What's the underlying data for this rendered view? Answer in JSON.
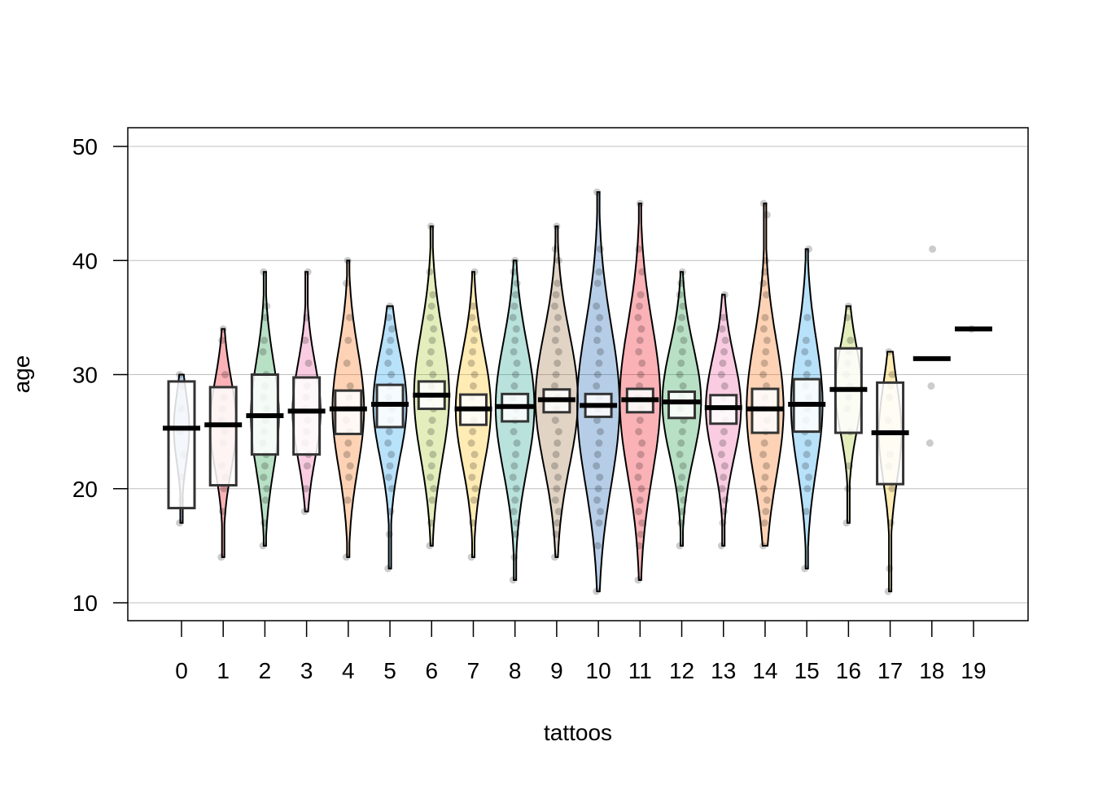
{
  "chart_data": {
    "type": "pirateplot",
    "title": "",
    "xlabel": "tattoos",
    "ylabel": "age",
    "ylim": [
      10,
      50
    ],
    "yticks": [
      "10",
      "20",
      "30",
      "40",
      "50"
    ],
    "grid": true,
    "categories": [
      "0",
      "1",
      "2",
      "3",
      "4",
      "5",
      "6",
      "7",
      "8",
      "9",
      "10",
      "11",
      "12",
      "13",
      "14",
      "15",
      "16",
      "17",
      "18",
      "19"
    ],
    "colors": [
      "#0C5BB0",
      "#EE0011",
      "#15983D",
      "#EC579A",
      "#FA6B09",
      "#149BED",
      "#A1C720",
      "#FEC10B",
      "#16A08C",
      "#9A703E",
      "#0C5BB0",
      "#EE0011",
      "#15983D",
      "#EC579A",
      "#FA6B09",
      "#149BED",
      "#A1C720",
      "#FEC10B",
      "#16A08C",
      "#9A703E"
    ],
    "means": [
      25.3,
      25.6,
      26.4,
      26.8,
      27.0,
      27.4,
      28.2,
      27.0,
      27.2,
      27.8,
      27.3,
      27.8,
      27.6,
      27.1,
      27.0,
      27.4,
      28.7,
      24.9,
      31.4,
      34.0
    ],
    "box_low": [
      18.3,
      20.3,
      23.0,
      23.0,
      24.8,
      25.4,
      27.0,
      25.6,
      25.9,
      26.7,
      26.3,
      26.7,
      26.2,
      25.7,
      24.9,
      25.0,
      24.9,
      20.4,
      null,
      null
    ],
    "box_high": [
      29.4,
      28.9,
      30.0,
      29.75,
      28.6,
      29.1,
      29.4,
      28.25,
      28.3,
      28.7,
      28.3,
      28.75,
      28.5,
      28.2,
      28.75,
      29.6,
      32.3,
      29.3,
      null,
      null
    ],
    "min": [
      17,
      14,
      15,
      18,
      14,
      13,
      15,
      14,
      12,
      14,
      11,
      12,
      15,
      15,
      15,
      13,
      17,
      11,
      24,
      34
    ],
    "max": [
      30,
      34,
      39,
      39,
      40,
      36,
      43,
      39,
      40,
      43,
      46,
      45,
      39,
      37,
      45,
      41,
      36,
      32,
      41,
      34
    ],
    "density_scale": [
      0.25,
      0.55,
      0.6,
      0.6,
      0.7,
      0.75,
      0.8,
      0.8,
      0.9,
      1,
      1,
      0.95,
      0.9,
      0.8,
      0.85,
      0.7,
      0.55,
      0.45,
      0,
      0
    ],
    "points": [
      [
        17,
        19,
        21,
        23,
        25,
        27,
        29,
        30
      ],
      [
        14,
        18,
        20,
        21,
        22,
        24,
        25,
        26,
        27,
        28,
        30,
        33,
        34
      ],
      [
        15,
        17,
        19,
        20,
        21,
        22,
        23,
        24,
        25,
        26,
        27,
        28,
        29,
        30,
        32,
        33,
        35,
        36,
        39
      ],
      [
        18,
        20,
        22,
        23,
        24,
        25,
        26,
        27,
        28,
        29,
        31,
        33,
        35,
        39
      ],
      [
        14,
        19,
        21,
        22,
        23,
        24,
        25,
        26,
        27,
        28,
        29,
        31,
        33,
        35,
        38,
        40
      ],
      [
        13,
        16,
        18,
        20,
        21,
        22,
        23,
        24,
        25,
        26,
        27,
        28,
        29,
        30,
        31,
        32,
        33,
        34,
        35,
        36
      ],
      [
        15,
        17,
        19,
        20,
        21,
        22,
        23,
        24,
        25,
        26,
        27,
        28,
        29,
        30,
        31,
        32,
        33,
        34,
        35,
        36,
        37,
        39,
        43
      ],
      [
        14,
        17,
        19,
        20,
        21,
        22,
        23,
        24,
        25,
        26,
        27,
        28,
        29,
        30,
        31,
        32,
        33,
        34,
        35,
        36,
        39
      ],
      [
        12,
        14,
        16,
        17,
        18,
        19,
        20,
        21,
        22,
        23,
        24,
        25,
        26,
        27,
        28,
        29,
        30,
        31,
        32,
        33,
        34,
        35,
        36,
        37,
        38,
        39,
        40
      ],
      [
        14,
        16,
        17,
        18,
        19,
        20,
        21,
        22,
        23,
        24,
        25,
        26,
        27,
        28,
        29,
        30,
        31,
        32,
        33,
        34,
        35,
        36,
        37,
        38,
        40,
        41,
        43
      ],
      [
        11,
        15,
        17,
        18,
        19,
        20,
        21,
        22,
        23,
        24,
        25,
        26,
        27,
        28,
        29,
        30,
        31,
        32,
        33,
        34,
        35,
        36,
        38,
        39,
        41,
        46
      ],
      [
        12,
        15,
        16,
        17,
        18,
        19,
        20,
        21,
        22,
        23,
        24,
        25,
        26,
        27,
        28,
        29,
        30,
        31,
        32,
        33,
        34,
        35,
        36,
        37,
        39,
        41,
        45
      ],
      [
        15,
        17,
        18,
        19,
        20,
        21,
        22,
        23,
        24,
        25,
        26,
        27,
        28,
        29,
        30,
        31,
        32,
        33,
        34,
        35,
        36,
        37,
        38,
        39
      ],
      [
        15,
        17,
        18,
        19,
        20,
        21,
        22,
        23,
        24,
        25,
        26,
        27,
        28,
        29,
        30,
        31,
        32,
        33,
        34,
        35,
        37
      ],
      [
        15,
        17,
        18,
        19,
        20,
        21,
        22,
        23,
        24,
        25,
        26,
        27,
        28,
        29,
        30,
        31,
        32,
        33,
        34,
        35,
        37,
        38,
        39,
        40,
        44,
        45
      ],
      [
        13,
        18,
        20,
        21,
        22,
        23,
        24,
        25,
        26,
        27,
        28,
        29,
        30,
        31,
        32,
        33,
        35,
        41
      ],
      [
        17,
        20,
        22,
        25,
        27,
        28,
        29,
        30,
        31,
        32,
        33,
        35,
        36
      ],
      [
        11,
        13,
        17,
        20,
        22,
        23,
        25,
        26,
        28,
        29,
        30,
        32
      ],
      [
        24,
        29,
        41
      ],
      [
        34
      ]
    ]
  }
}
